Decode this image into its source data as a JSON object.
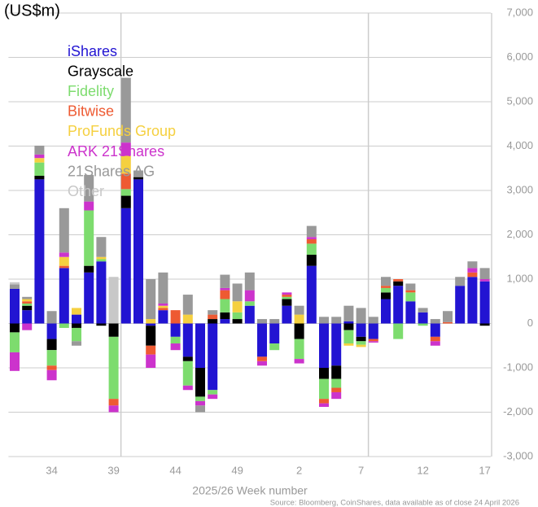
{
  "chart_data": {
    "type": "stacked_bar",
    "y_label": "(US$m)",
    "x_label": "2025/26 Week number",
    "source": "Source: Bloomberg, CoinShares, data available as of close 24 April 2026",
    "categories": [
      null,
      null,
      null,
      "34",
      null,
      null,
      null,
      null,
      "39",
      null,
      null,
      null,
      null,
      "44",
      null,
      null,
      null,
      null,
      "49",
      null,
      null,
      null,
      null,
      "2",
      null,
      null,
      null,
      null,
      "7",
      null,
      null,
      null,
      null,
      "12",
      null,
      null,
      null,
      null,
      "17"
    ],
    "series": [
      {
        "name": "iShares",
        "color": "#2214d2",
        "values": [
          780,
          300,
          3250,
          -350,
          1250,
          200,
          1150,
          1400,
          0,
          2600,
          3250,
          -50,
          300,
          -300,
          -750,
          -1000,
          -1500,
          100,
          0,
          400,
          -750,
          -450,
          400,
          0,
          1300,
          -1000,
          -950,
          50,
          -300,
          -350,
          550,
          850,
          500,
          250,
          -300,
          0,
          850,
          1050,
          950
        ]
      },
      {
        "name": "Grayscale",
        "color": "#000000",
        "values": [
          -200,
          100,
          80,
          -250,
          0,
          -100,
          150,
          -50,
          -300,
          280,
          50,
          -450,
          0,
          0,
          -100,
          -650,
          100,
          150,
          100,
          0,
          0,
          0,
          150,
          -350,
          250,
          -250,
          -300,
          -150,
          -100,
          0,
          150,
          100,
          0,
          0,
          0,
          0,
          0,
          0,
          -50
        ]
      },
      {
        "name": "Fidelity",
        "color": "#7ddc6e",
        "values": [
          -450,
          50,
          300,
          -350,
          -100,
          -300,
          1250,
          50,
          -1400,
          150,
          0,
          0,
          0,
          -150,
          -550,
          -100,
          -100,
          300,
          150,
          100,
          0,
          -150,
          50,
          -450,
          250,
          -450,
          -200,
          -300,
          -80,
          0,
          100,
          -350,
          200,
          -50,
          0,
          0,
          0,
          0,
          0
        ]
      },
      {
        "name": "Bitwise",
        "color": "#ee5a32",
        "values": [
          0,
          50,
          0,
          -100,
          50,
          0,
          0,
          0,
          -150,
          350,
          0,
          -200,
          50,
          300,
          0,
          0,
          100,
          200,
          0,
          0,
          -100,
          0,
          50,
          0,
          100,
          -100,
          -100,
          0,
          0,
          -50,
          50,
          50,
          50,
          0,
          -100,
          30,
          0,
          100,
          0
        ]
      },
      {
        "name": "ProFunds Group",
        "color": "#f5d040",
        "values": [
          0,
          50,
          100,
          0,
          200,
          150,
          0,
          50,
          0,
          400,
          0,
          100,
          50,
          0,
          200,
          0,
          0,
          0,
          250,
          0,
          0,
          0,
          0,
          200,
          0,
          0,
          0,
          -50,
          -50,
          0,
          0,
          0,
          0,
          0,
          0,
          0,
          0,
          0,
          0
        ]
      },
      {
        "name": "ARK 21Shares",
        "color": "#cc33cc",
        "values": [
          -420,
          -150,
          80,
          -230,
          100,
          0,
          200,
          0,
          -150,
          300,
          0,
          -300,
          50,
          -150,
          -100,
          -100,
          -100,
          50,
          0,
          250,
          -100,
          0,
          50,
          -100,
          50,
          -80,
          -150,
          0,
          0,
          -30,
          0,
          0,
          0,
          0,
          -100,
          0,
          0,
          100,
          50
        ]
      },
      {
        "name": "21Shares AG",
        "color": "#999999",
        "values": [
          100,
          50,
          200,
          280,
          1000,
          -100,
          600,
          450,
          0,
          1460,
          150,
          900,
          700,
          0,
          450,
          -150,
          100,
          300,
          400,
          400,
          100,
          100,
          0,
          200,
          250,
          150,
          150,
          350,
          350,
          150,
          200,
          0,
          150,
          100,
          100,
          250,
          200,
          150,
          250
        ]
      },
      {
        "name": "Other",
        "color": "#c8c8c8",
        "values": [
          50,
          0,
          0,
          0,
          0,
          0,
          0,
          0,
          1050,
          0,
          0,
          0,
          0,
          0,
          0,
          0,
          0,
          0,
          0,
          0,
          0,
          0,
          0,
          0,
          0,
          0,
          0,
          0,
          0,
          0,
          0,
          0,
          0,
          0,
          0,
          0,
          0,
          0,
          0
        ]
      }
    ],
    "ylim": [
      -3000,
      7000
    ],
    "yticks": [
      {
        "value": 7000,
        "label": "7,000"
      },
      {
        "value": 6000,
        "label": "6,000"
      },
      {
        "value": 5000,
        "label": "5,000"
      },
      {
        "value": 4000,
        "label": "4,000"
      },
      {
        "value": 3000,
        "label": "3,000"
      },
      {
        "value": 2000,
        "label": "2,000"
      },
      {
        "value": 1000,
        "label": "1,000"
      },
      0,
      {
        "value": -1000,
        "label": "-1,000"
      },
      {
        "value": -2000,
        "label": "-2,000"
      },
      {
        "value": -3000,
        "label": "-3,000"
      }
    ],
    "grid": true
  }
}
